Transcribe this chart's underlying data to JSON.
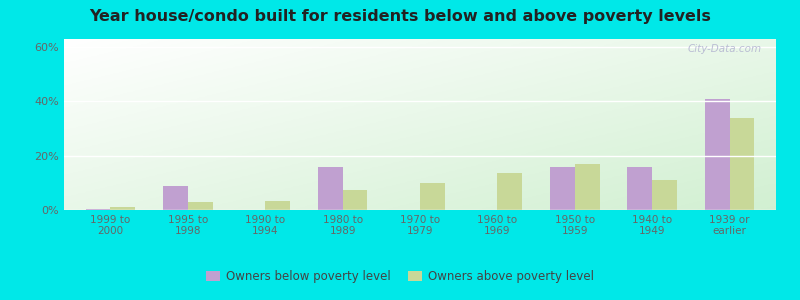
{
  "title": "Year house/condo built for residents below and above poverty levels",
  "categories": [
    "1999 to\n2000",
    "1995 to\n1998",
    "1990 to\n1994",
    "1980 to\n1989",
    "1970 to\n1979",
    "1960 to\n1969",
    "1950 to\n1959",
    "1940 to\n1949",
    "1939 or\nearlier"
  ],
  "below_poverty": [
    0.5,
    9.0,
    0.0,
    16.0,
    0.0,
    0.0,
    16.0,
    16.0,
    41.0
  ],
  "above_poverty": [
    1.0,
    3.0,
    3.5,
    7.5,
    10.0,
    13.5,
    17.0,
    11.0,
    34.0
  ],
  "below_color": "#c0a0d0",
  "above_color": "#c8d898",
  "ylim": [
    0,
    63
  ],
  "yticks": [
    0,
    20,
    40,
    60
  ],
  "ytick_labels": [
    "0%",
    "20%",
    "40%",
    "60%"
  ],
  "outer_background": "#00e8e8",
  "legend_below": "Owners below poverty level",
  "legend_above": "Owners above poverty level",
  "watermark": "City-Data.com",
  "title_color": "#222222",
  "tick_color": "#666666"
}
